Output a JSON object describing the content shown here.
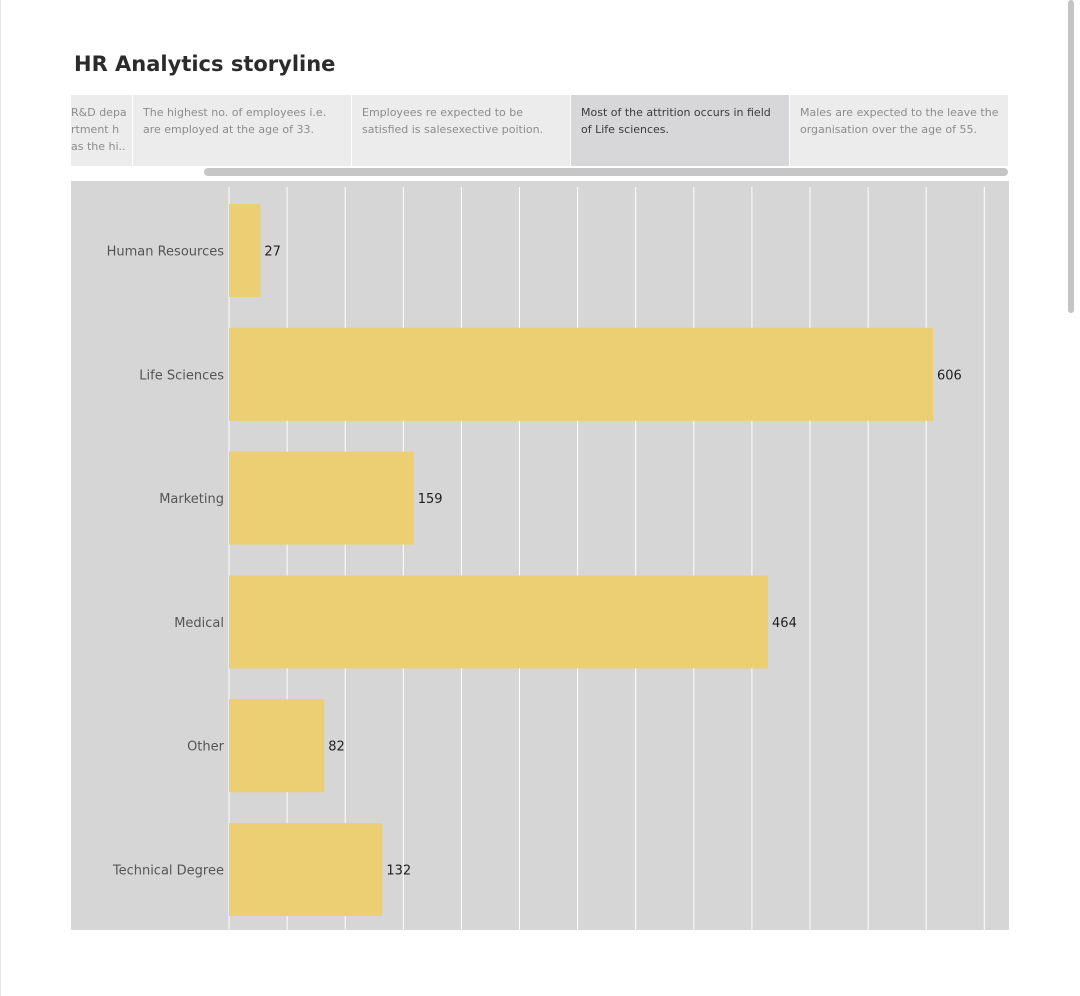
{
  "page": {
    "title": "HR Analytics storyline"
  },
  "story_points": [
    {
      "text": "R&D depa rtment h as the hi..",
      "active": false
    },
    {
      "text": "The highest no. of employees i.e. are employed at the age of 33.",
      "active": false
    },
    {
      "text": "Employees re expected to be satisfied is salesexective poition.",
      "active": false
    },
    {
      "text": "Most of the attrition occurs in field of Life sciences.",
      "active": true
    },
    {
      "text": "Males are expected to the leave the organisation over the age of 55.",
      "active": false
    }
  ],
  "colors": {
    "bar": "#eccf72",
    "chart_background": "#d6d6d6",
    "gridline": "#ffffff",
    "active_story_point": "#d7d7d9"
  },
  "chart_data": {
    "type": "bar",
    "orientation": "horizontal",
    "categories": [
      "Human Resources",
      "Life Sciences",
      "Marketing",
      "Medical",
      "Other",
      "Technical Degree"
    ],
    "values": [
      27,
      606,
      159,
      464,
      82,
      132
    ],
    "xlim": [
      0,
      670
    ],
    "grid": true,
    "data_labels": true
  }
}
